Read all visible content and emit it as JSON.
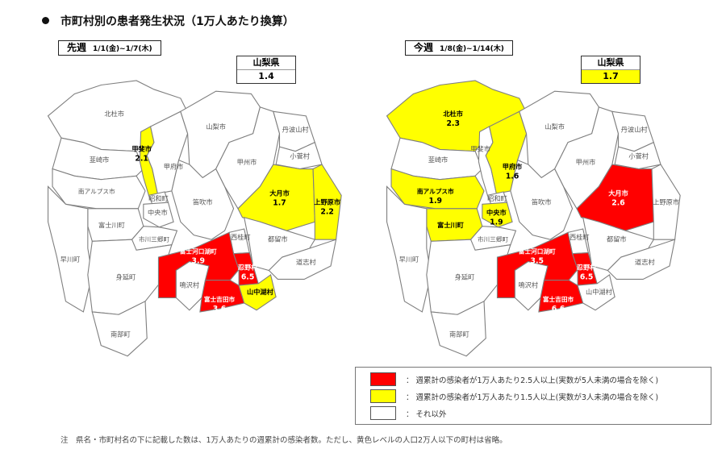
{
  "title": "市町村別の患者発生状況（1万人あたり換算）",
  "colors": {
    "red": "#ff0000",
    "yellow": "#ffff00",
    "white": "#ffffff",
    "border": "#7f7f7f"
  },
  "municipalities": [
    "北杜市",
    "韮崎市",
    "甲斐市",
    "甲府市",
    "南アルプス市",
    "昭和町",
    "中央市",
    "富士川町",
    "市川三郷町",
    "早川町",
    "身延町",
    "南部町",
    "山梨市",
    "笛吹市",
    "甲州市",
    "丹波山村",
    "小菅村",
    "大月市",
    "上野原市",
    "都留市",
    "道志村",
    "西桂町",
    "富士河口湖町",
    "忍野村",
    "鳴沢村",
    "富士吉田市",
    "山中湖村"
  ],
  "maps": [
    {
      "period_label": "先週",
      "dates": "1/1(金)~1/7(木)",
      "prefecture": {
        "label": "山梨県",
        "value": "1.4",
        "level": "white"
      },
      "levels": {
        "甲斐市": [
          "yellow",
          "2.1"
        ],
        "大月市": [
          "yellow",
          "1.7"
        ],
        "上野原市": [
          "yellow",
          "2.2"
        ],
        "山中湖村": [
          "yellow",
          ""
        ],
        "富士河口湖町": [
          "red",
          "3.9"
        ],
        "忍野村": [
          "red",
          "6.5"
        ],
        "富士吉田市": [
          "red",
          "3.6"
        ]
      }
    },
    {
      "period_label": "今週",
      "dates": "1/8(金)~1/14(木)",
      "prefecture": {
        "label": "山梨県",
        "value": "1.7",
        "level": "yellow"
      },
      "levels": {
        "北杜市": [
          "yellow",
          "2.3"
        ],
        "甲府市": [
          "yellow",
          "1.6"
        ],
        "南アルプス市": [
          "yellow",
          "1.9"
        ],
        "富士川町": [
          "yellow",
          ""
        ],
        "中央市": [
          "yellow",
          "1.9"
        ],
        "大月市": [
          "red",
          "2.6"
        ],
        "富士河口湖町": [
          "red",
          "3.5"
        ],
        "忍野村": [
          "red",
          "6.5"
        ],
        "富士吉田市": [
          "red",
          "6.6"
        ]
      }
    }
  ],
  "legend": [
    {
      "level": "red",
      "text": "：  週累計の感染者が1万人あたり2.5人以上(実数が5人未満の場合を除く)"
    },
    {
      "level": "yellow",
      "text": "：  週累計の感染者が1万人あたり1.5人以上(実数が3人未満の場合を除く)"
    },
    {
      "level": "white",
      "text": "：  それ以外"
    }
  ],
  "note": "注　県名・市町村名の下に記載した数は、1万人あたりの週累計の感染者数。ただし、黄色レベルの人口2万人以下の町村は省略。"
}
